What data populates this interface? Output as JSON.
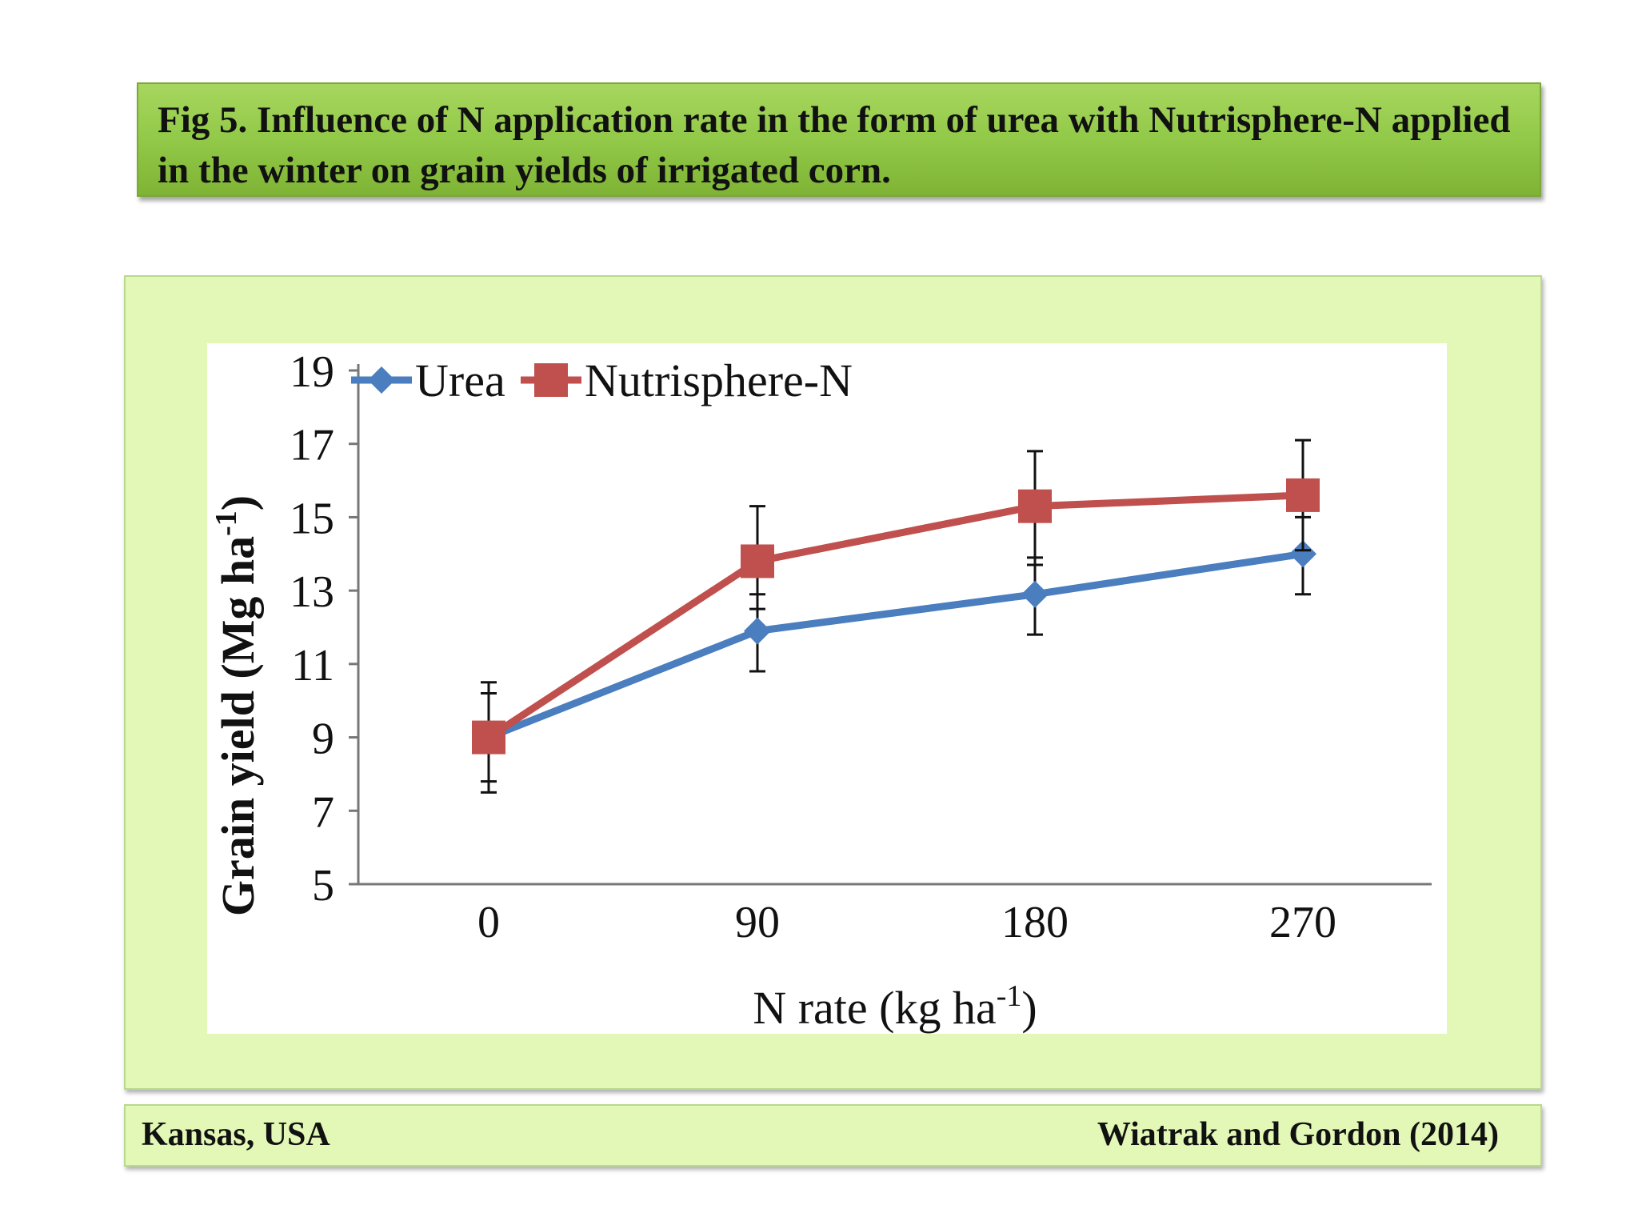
{
  "title": "Fig 5. Influence of N application rate in the form of urea with Nutrisphere-N applied in the winter on grain yields of irrigated corn.",
  "footer": {
    "location": "Kansas, USA",
    "citation": "Wiatrak and Gordon (2014)"
  },
  "chart_data": {
    "type": "line",
    "categories": [
      "0",
      "90",
      "180",
      "270"
    ],
    "xlabel": "N rate (kg ha",
    "xlabel_sup": "-1",
    "xlabel_end": ")",
    "ylabel": "Grain yield (Mg ha",
    "ylabel_sup": "-1",
    "ylabel_end": ")",
    "ylim": [
      5,
      19
    ],
    "yticks": [
      5,
      7,
      9,
      11,
      13,
      15,
      17,
      19
    ],
    "legend_position": "top-left",
    "grid": false,
    "series": [
      {
        "name": "Urea",
        "color": "#4a7ebf",
        "marker": "diamond",
        "values": [
          9.0,
          11.9,
          12.9,
          14.0
        ],
        "err_low": [
          7.8,
          10.8,
          11.8,
          12.9
        ],
        "err_high": [
          10.2,
          12.9,
          13.9,
          15.0
        ]
      },
      {
        "name": "Nutrisphere-N",
        "color": "#c0504d",
        "marker": "square",
        "values": [
          9.0,
          13.8,
          15.3,
          15.6
        ],
        "err_low": [
          7.5,
          12.5,
          13.7,
          14.1
        ],
        "err_high": [
          10.5,
          15.3,
          16.8,
          17.1
        ]
      }
    ]
  }
}
